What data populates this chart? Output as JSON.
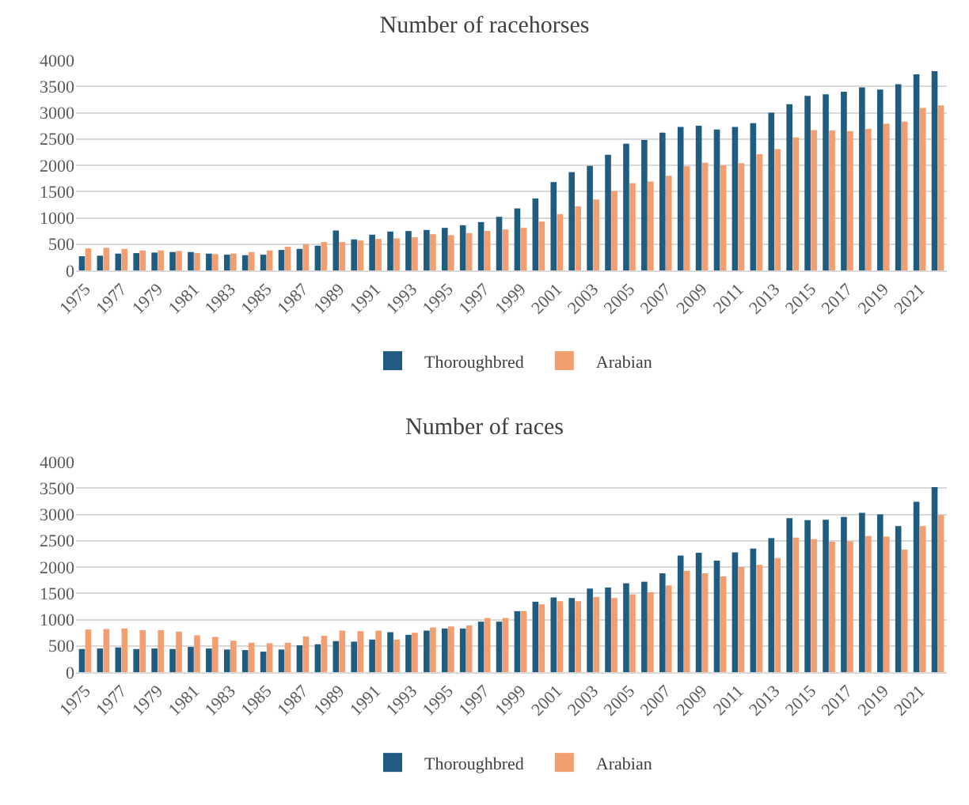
{
  "chart_data": [
    {
      "type": "bar",
      "title": "Number of racehorses",
      "categories": [
        "1975",
        null,
        "1977",
        null,
        "1979",
        null,
        "1981",
        null,
        "1983",
        null,
        "1985",
        null,
        "1987",
        null,
        "1989",
        null,
        "1991",
        null,
        "1993",
        null,
        "1995",
        null,
        "1997",
        null,
        "1999",
        null,
        "2001",
        null,
        "2003",
        null,
        "2005",
        null,
        "2007",
        null,
        "2009",
        null,
        "2011",
        null,
        "2013",
        null,
        "2015",
        null,
        "2017",
        null,
        "2019",
        null,
        "2021",
        null
      ],
      "series": [
        {
          "name": "Thoroughbred",
          "color": "#1f5c7f",
          "values": [
            270,
            280,
            320,
            330,
            340,
            350,
            350,
            320,
            300,
            290,
            300,
            390,
            410,
            470,
            760,
            590,
            680,
            740,
            750,
            770,
            810,
            860,
            920,
            1020,
            1180,
            1370,
            1680,
            1870,
            1990,
            2200,
            2410,
            2480,
            2620,
            2730,
            2750,
            2680,
            2730,
            2800,
            3000,
            3160,
            3320,
            3350,
            3400,
            3480,
            3440,
            3540,
            3730,
            3790
          ]
        },
        {
          "name": "Arabian",
          "color": "#f29e70",
          "values": [
            420,
            430,
            410,
            380,
            380,
            370,
            330,
            310,
            320,
            350,
            380,
            450,
            500,
            540,
            540,
            570,
            600,
            610,
            630,
            690,
            670,
            710,
            750,
            780,
            810,
            930,
            1070,
            1220,
            1350,
            1510,
            1660,
            1690,
            1800,
            1980,
            2050,
            2000,
            2040,
            2210,
            2310,
            2530,
            2670,
            2660,
            2650,
            2690,
            2790,
            2830,
            3090,
            3140
          ]
        }
      ],
      "ylim": [
        0,
        4000
      ],
      "yticks": [
        0,
        500,
        1000,
        1500,
        2000,
        2500,
        3000,
        3500,
        4000
      ],
      "grid": "y",
      "legend": "bottom"
    },
    {
      "type": "bar",
      "title": "Number of races",
      "categories": [
        "1975",
        null,
        "1977",
        null,
        "1979",
        null,
        "1981",
        null,
        "1983",
        null,
        "1985",
        null,
        "1987",
        null,
        "1989",
        null,
        "1991",
        null,
        "1993",
        null,
        "1995",
        null,
        "1997",
        null,
        "1999",
        null,
        "2001",
        null,
        "2003",
        null,
        "2005",
        null,
        "2007",
        null,
        "2009",
        null,
        "2011",
        null,
        "2013",
        null,
        "2015",
        null,
        "2017",
        null,
        "2019",
        null,
        "2021",
        null
      ],
      "series": [
        {
          "name": "Thoroughbred",
          "color": "#1f5c7f",
          "values": [
            440,
            450,
            470,
            440,
            450,
            440,
            480,
            450,
            430,
            420,
            390,
            430,
            510,
            530,
            590,
            580,
            620,
            760,
            710,
            790,
            830,
            830,
            960,
            960,
            1160,
            1340,
            1420,
            1410,
            1590,
            1610,
            1690,
            1720,
            1880,
            2220,
            2270,
            2120,
            2280,
            2350,
            2550,
            2930,
            2890,
            2900,
            2950,
            3030,
            3000,
            2780,
            3240,
            3520
          ]
        },
        {
          "name": "Arabian",
          "color": "#f29e70",
          "values": [
            810,
            820,
            830,
            800,
            800,
            770,
            700,
            670,
            600,
            560,
            550,
            560,
            680,
            690,
            790,
            780,
            790,
            620,
            750,
            850,
            870,
            890,
            1030,
            1030,
            1160,
            1290,
            1350,
            1350,
            1430,
            1410,
            1480,
            1520,
            1650,
            1930,
            1880,
            1820,
            2000,
            2040,
            2170,
            2560,
            2530,
            2480,
            2490,
            2590,
            2580,
            2330,
            2780,
            2990
          ]
        }
      ],
      "ylim": [
        0,
        4000
      ],
      "yticks": [
        0,
        500,
        1000,
        1500,
        2000,
        2500,
        3000,
        3500,
        4000
      ],
      "grid": "y",
      "legend": "bottom"
    }
  ]
}
